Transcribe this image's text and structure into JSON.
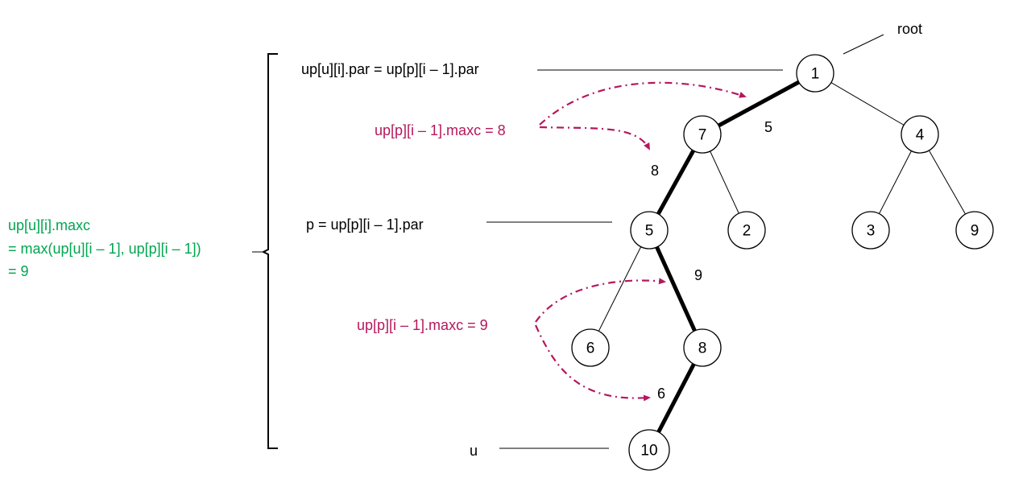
{
  "colors": {
    "accent": "#b5175c",
    "green": "#00a550",
    "black": "#000000"
  },
  "tree": {
    "root_label": "root",
    "nodes": {
      "n1": "1",
      "n7": "7",
      "n4": "4",
      "n5": "5",
      "n2": "2",
      "n3": "3",
      "n9": "9",
      "n6": "6",
      "n8": "8",
      "n10": "10"
    },
    "edge_weights": {
      "e1_7": "5",
      "e7_5": "8",
      "e5_8": "9",
      "e8_10": "6"
    }
  },
  "annotations": {
    "top_par": "up[u][i].par = up[p][i – 1].par",
    "p_par": "p = up[p][i – 1].par",
    "u_label": "u",
    "maxc_upper": "up[p][i – 1].maxc = 8",
    "maxc_lower": "up[p][i – 1].maxc = 9",
    "result_line1": "up[u][i].maxc",
    "result_line2": "= max(up[u][i – 1], up[p][i – 1])",
    "result_line3": "= 9"
  }
}
